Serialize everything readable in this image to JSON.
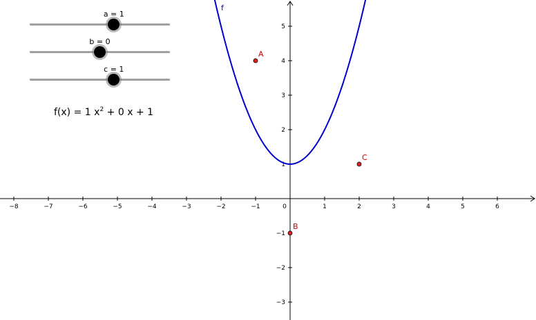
{
  "colors": {
    "curve": "#0000cc",
    "point_fill": "#e02020",
    "point_label": "#cc0000",
    "axis": "#000000",
    "slider_track": "#a0a0a0",
    "slider_knob": "#000000"
  },
  "sliders": [
    {
      "name": "a",
      "label": "a = 1",
      "value": 1,
      "min": -5,
      "max": 5
    },
    {
      "name": "b",
      "label": "b = 0",
      "value": 0,
      "min": -5,
      "max": 5
    },
    {
      "name": "c",
      "label": "c = 1",
      "value": 1,
      "min": -5,
      "max": 5
    }
  ],
  "formula": {
    "lhs": "f(x)",
    "eq": "=",
    "a_coef": "1",
    "var": "x",
    "exp": "2",
    "plus1": "+",
    "b_coef": "0",
    "var2": "x",
    "plus2": "+",
    "c_const": "1"
  },
  "function": {
    "name": "f",
    "label": "f"
  },
  "axes": {
    "x_ticks": [
      "−8",
      "−7",
      "−6",
      "−5",
      "−4",
      "−3",
      "−2",
      "−1",
      "0",
      "1",
      "2",
      "3",
      "4",
      "5",
      "6"
    ],
    "y_ticks": [
      "−3",
      "−2",
      "−1",
      "1",
      "2",
      "3",
      "4",
      "5"
    ]
  },
  "points": [
    {
      "name": "A",
      "x": -1,
      "y": 4
    },
    {
      "name": "B",
      "x": 0,
      "y": -1
    },
    {
      "name": "C",
      "x": 2,
      "y": 1
    }
  ]
}
